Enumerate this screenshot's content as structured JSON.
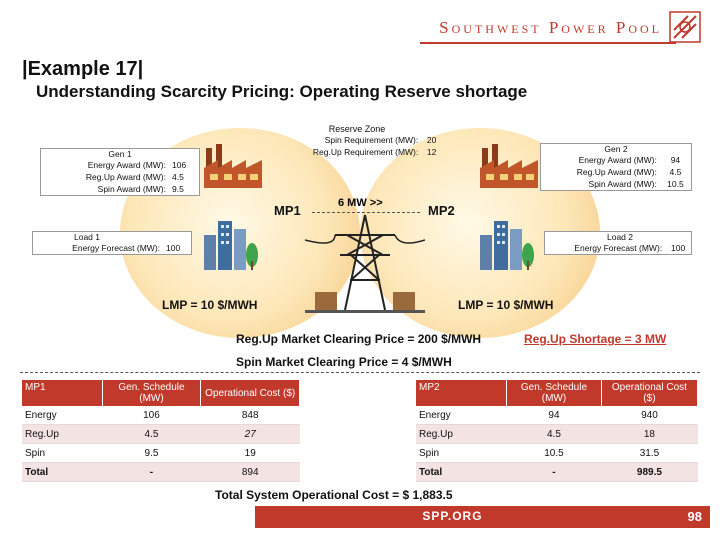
{
  "brand": "Southwest Power Pool",
  "title": "|Example 17|",
  "subtitle": "Understanding Scarcity Pricing: Operating Reserve shortage",
  "reserve_zone": {
    "title": "Reserve Zone",
    "rows": [
      {
        "label": "Spin Requirement (MW):",
        "value": "20"
      },
      {
        "label": "Reg.Up Requirement (MW):",
        "value": "12"
      }
    ]
  },
  "gen1": {
    "title": "Gen 1",
    "rows": [
      {
        "label": "Energy Award (MW):",
        "value": "106"
      },
      {
        "label": "Reg.Up Award (MW):",
        "value": "4.5"
      },
      {
        "label": "Spin Award (MW):",
        "value": "9.5"
      }
    ]
  },
  "gen2": {
    "title": "Gen 2",
    "rows": [
      {
        "label": "Energy Award (MW):",
        "value": "94"
      },
      {
        "label": "Reg.Up Award (MW):",
        "value": "4.5"
      },
      {
        "label": "Spin Award (MW):",
        "value": "10.5"
      }
    ]
  },
  "load1": {
    "title": "Load 1",
    "label": "Energy Forecast (MW):",
    "value": "100"
  },
  "load2": {
    "title": "Load 2",
    "label": "Energy Forecast (MW):",
    "value": "100"
  },
  "mp1_label": "MP1",
  "mp2_label": "MP2",
  "flow": "6 MW >>",
  "lmp1": "LMP = 10 $/MWH",
  "lmp2": "LMP = 10 $/MWH",
  "regup_price": "Reg.Up Market Clearing Price = 200 $/MWH",
  "regup_shortage": "Reg.Up Shortage = 3 MW",
  "spin_price": "Spin Market Clearing Price = 4 $/MWH",
  "table_mp1": {
    "headers": [
      "MP1",
      "Gen. Schedule (MW)",
      "Operational Cost ($)"
    ],
    "rows": [
      [
        "Energy",
        "106",
        "848"
      ],
      [
        "Reg.Up",
        "4.5",
        "27"
      ],
      [
        "Spin",
        "9.5",
        "19"
      ],
      [
        "Total",
        "-",
        "894"
      ]
    ]
  },
  "table_mp2": {
    "headers": [
      "MP2",
      "Gen. Schedule (MW)",
      "Operational Cost ($)"
    ],
    "rows": [
      [
        "Energy",
        "94",
        "940"
      ],
      [
        "Reg.Up",
        "4.5",
        "18"
      ],
      [
        "Spin",
        "10.5",
        "31.5"
      ],
      [
        "Total",
        "-",
        "989.5"
      ]
    ]
  },
  "total_cost": "Total System Operational Cost = $ 1,883.5",
  "footer_site": "SPP.ORG",
  "page_number": "98",
  "colors": {
    "accent": "#c0392b",
    "circle": "#f6c57a"
  }
}
